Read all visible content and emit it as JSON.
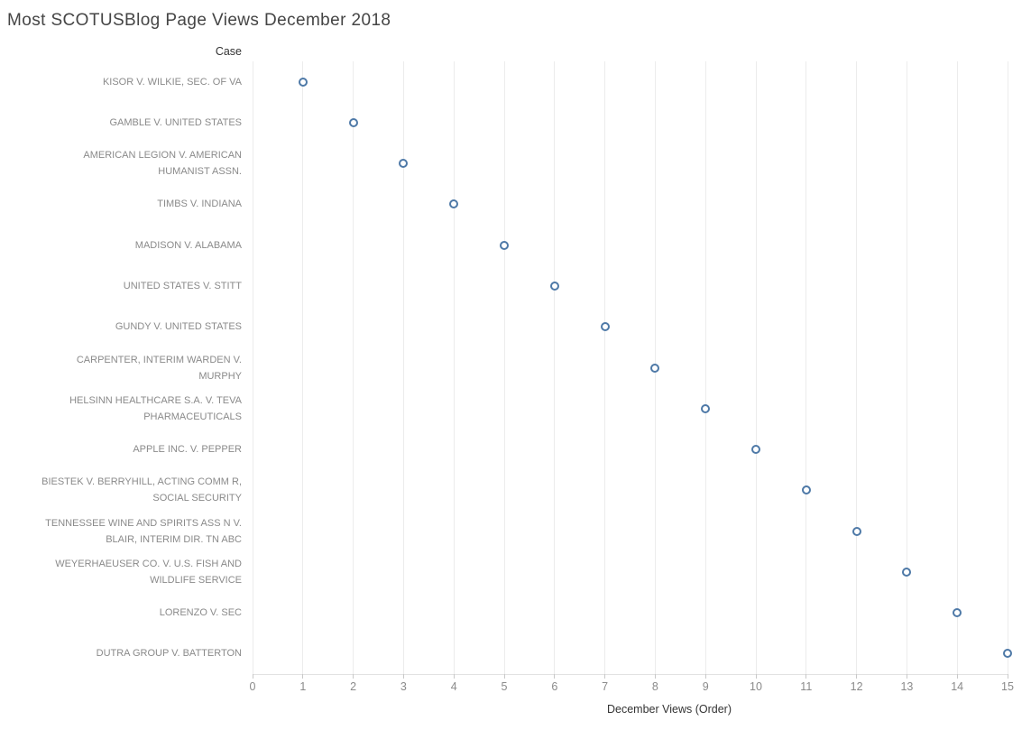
{
  "chart": {
    "title": "Most SCOTUSBlog Page Views December 2018",
    "row_header": "Case",
    "x_axis_title": "December Views (Order)"
  },
  "chart_data": {
    "type": "scatter",
    "subtype": "dot-plot-horizontal",
    "title": "Most SCOTUSBlog Page Views December 2018",
    "xlabel": "December Views (Order)",
    "ylabel": "Case",
    "xlim": [
      0,
      15
    ],
    "x_ticks": [
      0,
      1,
      2,
      3,
      4,
      5,
      6,
      7,
      8,
      9,
      10,
      11,
      12,
      13,
      14,
      15
    ],
    "grid": "vertical-only",
    "legend": false,
    "marker": {
      "shape": "open-circle",
      "color": "#4e79a7"
    },
    "categories": [
      "KISOR V. WILKIE, SEC. OF VA",
      "GAMBLE V. UNITED STATES",
      "AMERICAN LEGION V. AMERICAN HUMANIST ASSN.",
      "TIMBS V. INDIANA",
      "MADISON V. ALABAMA",
      "UNITED STATES V. STITT",
      "GUNDY V. UNITED STATES",
      "CARPENTER, INTERIM WARDEN V. MURPHY",
      "HELSINN HEALTHCARE S.A. V. TEVA PHARMACEUTICALS",
      "APPLE INC. V. PEPPER",
      "BIESTEK V. BERRYHILL, ACTING COMM R, SOCIAL SECURITY",
      "TENNESSEE WINE AND SPIRITS ASS N V. BLAIR, INTERIM DIR. TN ABC",
      "WEYERHAEUSER CO. V. U.S. FISH AND WILDLIFE SERVICE",
      "LORENZO V. SEC",
      "DUTRA GROUP V. BATTERTON"
    ],
    "category_lines": [
      [
        "KISOR V. WILKIE, SEC. OF VA"
      ],
      [
        "GAMBLE V. UNITED STATES"
      ],
      [
        "AMERICAN LEGION V. AMERICAN",
        "HUMANIST ASSN."
      ],
      [
        "TIMBS V. INDIANA"
      ],
      [
        "MADISON V. ALABAMA"
      ],
      [
        "UNITED STATES V. STITT"
      ],
      [
        "GUNDY V. UNITED STATES"
      ],
      [
        "CARPENTER, INTERIM WARDEN V.",
        "MURPHY"
      ],
      [
        "HELSINN HEALTHCARE S.A. V. TEVA",
        "PHARMACEUTICALS"
      ],
      [
        "APPLE INC. V. PEPPER"
      ],
      [
        "BIESTEK V. BERRYHILL, ACTING COMM R,",
        "SOCIAL SECURITY"
      ],
      [
        "TENNESSEE WINE AND SPIRITS ASS N V.",
        "BLAIR, INTERIM DIR. TN ABC"
      ],
      [
        "WEYERHAEUSER CO. V. U.S. FISH AND",
        "WILDLIFE SERVICE"
      ],
      [
        "LORENZO V. SEC"
      ],
      [
        "DUTRA GROUP V. BATTERTON"
      ]
    ],
    "values": [
      1,
      2,
      3,
      4,
      5,
      6,
      7,
      8,
      9,
      10,
      11,
      12,
      13,
      14,
      15
    ]
  },
  "colors": {
    "background": "#ffffff",
    "marker": "#4e79a7",
    "gridline": "#ececec",
    "axis_line": "#e2e2e2",
    "tick_mark": "#c9c9c9",
    "title_text": "#454545",
    "field_label_text": "#333333",
    "tick_label_text": "#8a8a8a"
  }
}
